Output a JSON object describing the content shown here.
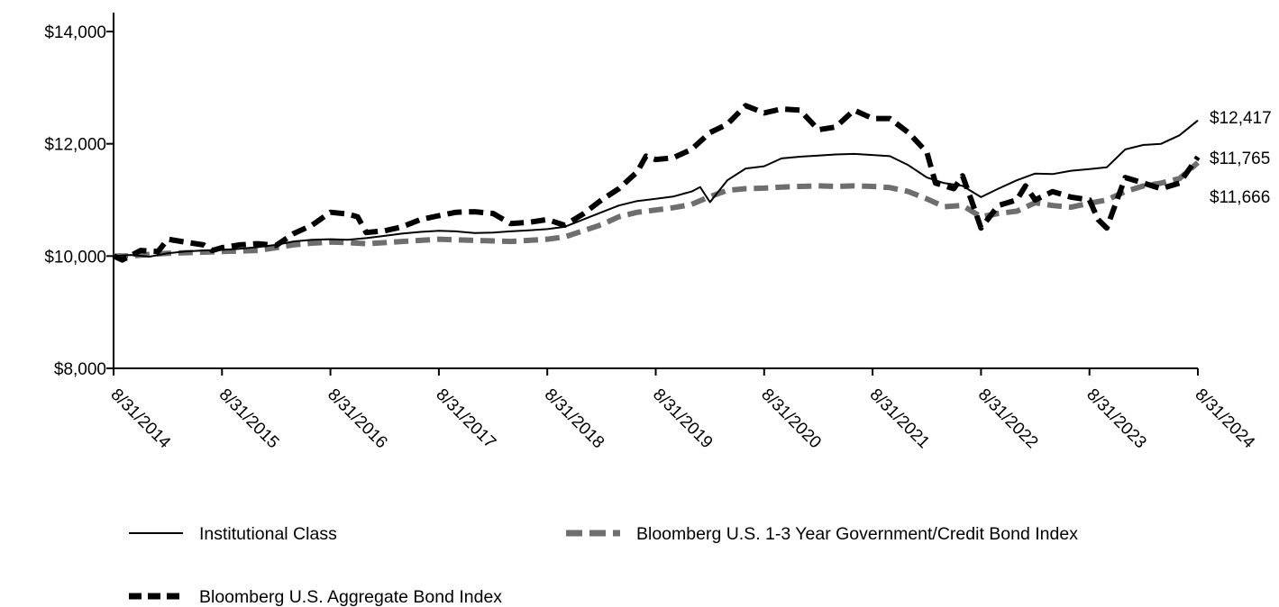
{
  "chart_data": {
    "type": "line",
    "title": "",
    "xlabel": "",
    "ylabel": "",
    "ylim": [
      8000,
      14000
    ],
    "y_ticks": [
      "$8,000",
      "$10,000",
      "$12,000",
      "$14,000"
    ],
    "y_tick_values": [
      8000,
      10000,
      12000,
      14000
    ],
    "x_ticks": [
      "8/31/2014",
      "8/31/2015",
      "8/31/2016",
      "8/31/2017",
      "8/31/2018",
      "8/31/2019",
      "8/31/2020",
      "8/31/2021",
      "8/31/2022",
      "8/31/2023",
      "8/31/2024"
    ],
    "grid": false,
    "legend_position": "bottom",
    "series": [
      {
        "name": "Institutional Class",
        "color": "#000000",
        "style": "solid",
        "end_label": "$12,417",
        "values": [
          [
            2014.67,
            10000
          ],
          [
            2014.83,
            10020
          ],
          [
            2015.0,
            9990
          ],
          [
            2015.17,
            10050
          ],
          [
            2015.33,
            10080
          ],
          [
            2015.5,
            10100
          ],
          [
            2015.67,
            10110
          ],
          [
            2015.83,
            10130
          ],
          [
            2016.0,
            10160
          ],
          [
            2016.17,
            10200
          ],
          [
            2016.33,
            10260
          ],
          [
            2016.5,
            10290
          ],
          [
            2016.67,
            10300
          ],
          [
            2016.83,
            10290
          ],
          [
            2017.0,
            10320
          ],
          [
            2017.17,
            10360
          ],
          [
            2017.33,
            10400
          ],
          [
            2017.5,
            10430
          ],
          [
            2017.67,
            10450
          ],
          [
            2017.83,
            10440
          ],
          [
            2018.0,
            10410
          ],
          [
            2018.17,
            10420
          ],
          [
            2018.33,
            10440
          ],
          [
            2018.5,
            10460
          ],
          [
            2018.67,
            10480
          ],
          [
            2018.83,
            10520
          ],
          [
            2019.0,
            10650
          ],
          [
            2019.17,
            10780
          ],
          [
            2019.33,
            10900
          ],
          [
            2019.5,
            10980
          ],
          [
            2019.67,
            11020
          ],
          [
            2019.83,
            11060
          ],
          [
            2020.0,
            11150
          ],
          [
            2020.08,
            11230
          ],
          [
            2020.17,
            10960
          ],
          [
            2020.33,
            11350
          ],
          [
            2020.5,
            11560
          ],
          [
            2020.67,
            11600
          ],
          [
            2020.83,
            11740
          ],
          [
            2021.0,
            11770
          ],
          [
            2021.17,
            11790
          ],
          [
            2021.33,
            11810
          ],
          [
            2021.5,
            11820
          ],
          [
            2021.67,
            11800
          ],
          [
            2021.83,
            11780
          ],
          [
            2022.0,
            11620
          ],
          [
            2022.17,
            11400
          ],
          [
            2022.33,
            11300
          ],
          [
            2022.5,
            11250
          ],
          [
            2022.67,
            11050
          ],
          [
            2022.83,
            11200
          ],
          [
            2023.0,
            11350
          ],
          [
            2023.17,
            11470
          ],
          [
            2023.33,
            11460
          ],
          [
            2023.5,
            11520
          ],
          [
            2023.67,
            11550
          ],
          [
            2023.83,
            11580
          ],
          [
            2024.0,
            11900
          ],
          [
            2024.17,
            11980
          ],
          [
            2024.33,
            12000
          ],
          [
            2024.5,
            12150
          ],
          [
            2024.67,
            12417
          ]
        ]
      },
      {
        "name": "Bloomberg U.S. Aggregate Bond Index",
        "color": "#000000",
        "style": "dashed-heavy",
        "end_label": "$11,765",
        "values": [
          [
            2014.67,
            10000
          ],
          [
            2014.75,
            9930
          ],
          [
            2014.92,
            10100
          ],
          [
            2015.08,
            10080
          ],
          [
            2015.17,
            10300
          ],
          [
            2015.33,
            10250
          ],
          [
            2015.5,
            10200
          ],
          [
            2015.58,
            10100
          ],
          [
            2015.67,
            10150
          ],
          [
            2015.83,
            10200
          ],
          [
            2016.0,
            10220
          ],
          [
            2016.17,
            10190
          ],
          [
            2016.33,
            10400
          ],
          [
            2016.5,
            10550
          ],
          [
            2016.67,
            10780
          ],
          [
            2016.83,
            10750
          ],
          [
            2016.92,
            10700
          ],
          [
            2017.0,
            10420
          ],
          [
            2017.17,
            10450
          ],
          [
            2017.33,
            10520
          ],
          [
            2017.5,
            10650
          ],
          [
            2017.67,
            10720
          ],
          [
            2017.83,
            10780
          ],
          [
            2018.0,
            10790
          ],
          [
            2018.17,
            10760
          ],
          [
            2018.33,
            10580
          ],
          [
            2018.5,
            10600
          ],
          [
            2018.67,
            10650
          ],
          [
            2018.83,
            10550
          ],
          [
            2019.0,
            10750
          ],
          [
            2019.17,
            11000
          ],
          [
            2019.33,
            11200
          ],
          [
            2019.5,
            11500
          ],
          [
            2019.58,
            11780
          ],
          [
            2019.67,
            11720
          ],
          [
            2019.83,
            11750
          ],
          [
            2020.0,
            11900
          ],
          [
            2020.17,
            12200
          ],
          [
            2020.33,
            12350
          ],
          [
            2020.5,
            12680
          ],
          [
            2020.67,
            12550
          ],
          [
            2020.83,
            12620
          ],
          [
            2021.0,
            12600
          ],
          [
            2021.17,
            12250
          ],
          [
            2021.33,
            12300
          ],
          [
            2021.5,
            12600
          ],
          [
            2021.67,
            12450
          ],
          [
            2021.83,
            12450
          ],
          [
            2022.0,
            12200
          ],
          [
            2022.17,
            11850
          ],
          [
            2022.25,
            11300
          ],
          [
            2022.42,
            11200
          ],
          [
            2022.5,
            11430
          ],
          [
            2022.58,
            11000
          ],
          [
            2022.67,
            10500
          ],
          [
            2022.83,
            10900
          ],
          [
            2023.0,
            11000
          ],
          [
            2023.08,
            11250
          ],
          [
            2023.17,
            11000
          ],
          [
            2023.33,
            11150
          ],
          [
            2023.5,
            11050
          ],
          [
            2023.67,
            11000
          ],
          [
            2023.75,
            10650
          ],
          [
            2023.83,
            10500
          ],
          [
            2024.0,
            11400
          ],
          [
            2024.17,
            11300
          ],
          [
            2024.33,
            11200
          ],
          [
            2024.5,
            11300
          ],
          [
            2024.67,
            11765
          ]
        ]
      },
      {
        "name": "Bloomberg U.S. 1-3 Year Government/Credit Bond Index",
        "color": "#6e6e6e",
        "style": "dashed-heavy",
        "end_label": "$11,666",
        "values": [
          [
            2014.67,
            10000
          ],
          [
            2014.83,
            10000
          ],
          [
            2015.0,
            10030
          ],
          [
            2015.17,
            10050
          ],
          [
            2015.33,
            10060
          ],
          [
            2015.5,
            10070
          ],
          [
            2015.67,
            10080
          ],
          [
            2015.83,
            10090
          ],
          [
            2016.0,
            10100
          ],
          [
            2016.17,
            10150
          ],
          [
            2016.33,
            10200
          ],
          [
            2016.5,
            10230
          ],
          [
            2016.67,
            10250
          ],
          [
            2016.83,
            10240
          ],
          [
            2017.0,
            10220
          ],
          [
            2017.17,
            10240
          ],
          [
            2017.33,
            10260
          ],
          [
            2017.5,
            10280
          ],
          [
            2017.67,
            10300
          ],
          [
            2017.83,
            10290
          ],
          [
            2018.0,
            10280
          ],
          [
            2018.17,
            10270
          ],
          [
            2018.33,
            10260
          ],
          [
            2018.5,
            10280
          ],
          [
            2018.67,
            10300
          ],
          [
            2018.83,
            10340
          ],
          [
            2019.0,
            10450
          ],
          [
            2019.17,
            10560
          ],
          [
            2019.33,
            10700
          ],
          [
            2019.5,
            10780
          ],
          [
            2019.67,
            10820
          ],
          [
            2019.83,
            10860
          ],
          [
            2020.0,
            10920
          ],
          [
            2020.17,
            11060
          ],
          [
            2020.33,
            11170
          ],
          [
            2020.5,
            11200
          ],
          [
            2020.67,
            11210
          ],
          [
            2020.83,
            11230
          ],
          [
            2021.0,
            11240
          ],
          [
            2021.17,
            11250
          ],
          [
            2021.33,
            11240
          ],
          [
            2021.5,
            11250
          ],
          [
            2021.67,
            11240
          ],
          [
            2021.83,
            11220
          ],
          [
            2022.0,
            11150
          ],
          [
            2022.17,
            11020
          ],
          [
            2022.33,
            10880
          ],
          [
            2022.5,
            10900
          ],
          [
            2022.67,
            10700
          ],
          [
            2022.83,
            10760
          ],
          [
            2023.0,
            10800
          ],
          [
            2023.17,
            10950
          ],
          [
            2023.33,
            10900
          ],
          [
            2023.5,
            10870
          ],
          [
            2023.67,
            10940
          ],
          [
            2023.83,
            11000
          ],
          [
            2024.0,
            11150
          ],
          [
            2024.17,
            11250
          ],
          [
            2024.33,
            11300
          ],
          [
            2024.5,
            11380
          ],
          [
            2024.67,
            11666
          ]
        ]
      }
    ]
  },
  "legend": {
    "items": [
      {
        "label": "Institutional Class"
      },
      {
        "label": "Bloomberg U.S. 1-3 Year Government/Credit Bond Index"
      },
      {
        "label": "Bloomberg U.S. Aggregate Bond Index"
      }
    ]
  }
}
